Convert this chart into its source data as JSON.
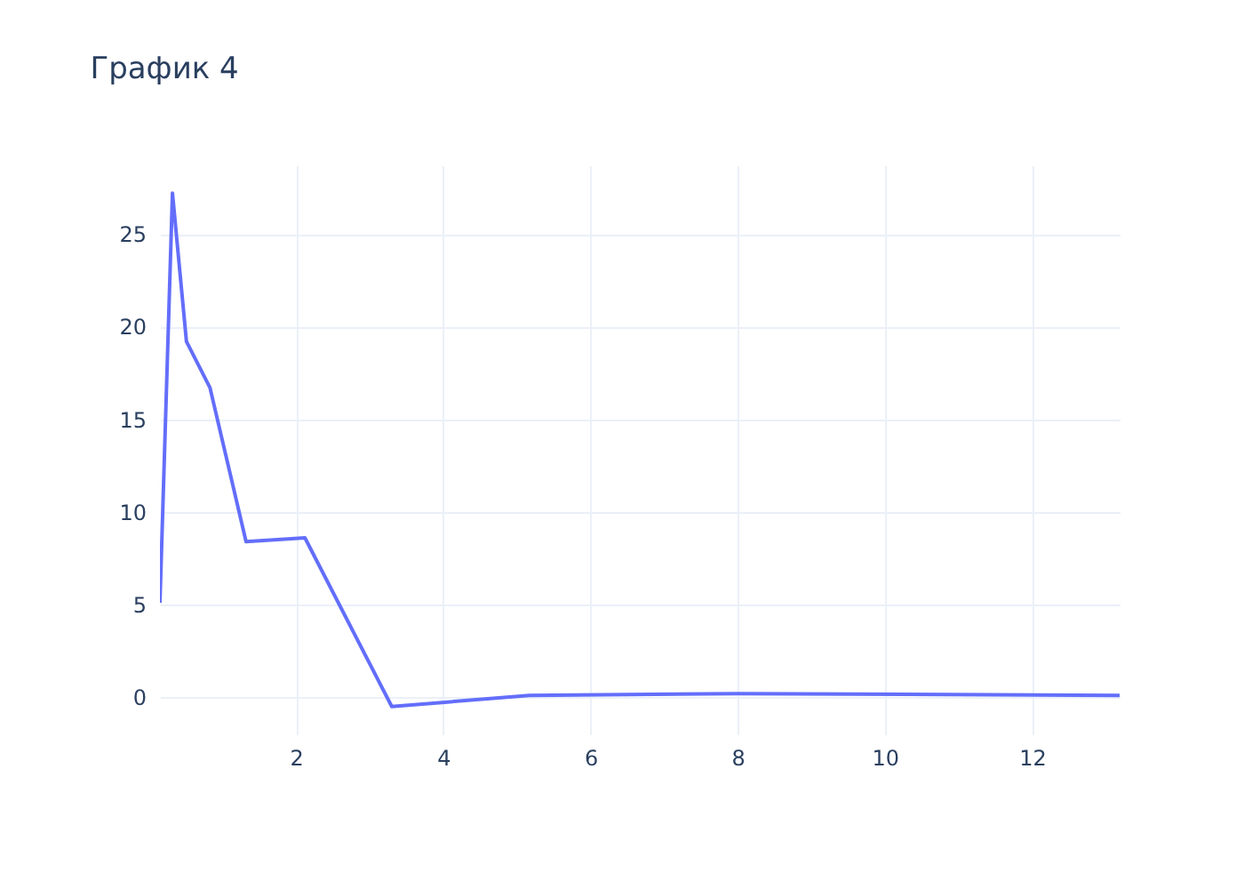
{
  "chart_data": {
    "type": "line",
    "title": "График 4",
    "x": [
      0.15,
      0.32,
      0.51,
      0.83,
      1.32,
      2.12,
      3.3,
      5.17,
      8.0,
      13.19
    ],
    "series": [
      {
        "color": "#636efa",
        "values": [
          5.1,
          27.2,
          19.2,
          16.7,
          8.4,
          8.6,
          -0.5,
          0.1,
          0.2,
          0.1
        ]
      }
    ],
    "xlim": [
      0.15,
      13.19
    ],
    "ylim": [
      -2,
      28.7
    ],
    "xticks": [
      2,
      4,
      6,
      8,
      10,
      12
    ],
    "yticks": [
      0,
      5,
      10,
      15,
      20,
      25
    ],
    "grid": true,
    "marker": "none",
    "line_style": "solid"
  }
}
